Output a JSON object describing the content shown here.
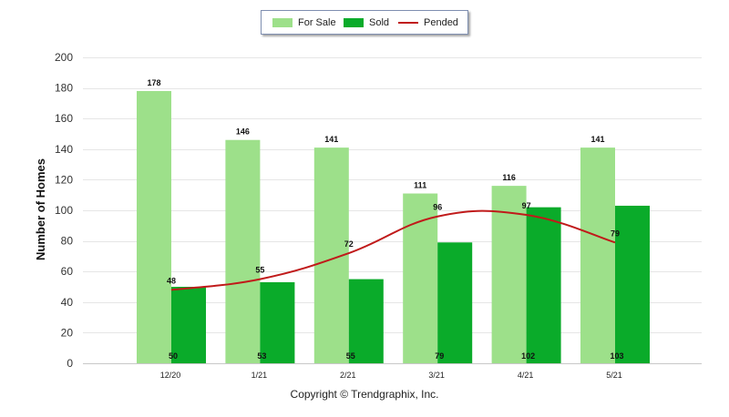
{
  "chart_data": {
    "type": "bar",
    "categories": [
      "12/20",
      "1/21",
      "2/21",
      "3/21",
      "4/21",
      "5/21"
    ],
    "series": [
      {
        "name": "For Sale",
        "kind": "bar",
        "color": "#9de08a",
        "values": [
          178,
          146,
          141,
          111,
          116,
          141
        ]
      },
      {
        "name": "Sold",
        "kind": "bar",
        "color": "#0aab2a",
        "values": [
          50,
          53,
          55,
          79,
          102,
          103
        ]
      },
      {
        "name": "Pended",
        "kind": "line",
        "color": "#c01a1a",
        "values": [
          48,
          55,
          72,
          96,
          97,
          79
        ]
      }
    ],
    "ylabel": "Number of Homes",
    "xlabel": "",
    "ylim": [
      0,
      200
    ],
    "yticks": [
      0,
      20,
      40,
      60,
      80,
      100,
      120,
      140,
      160,
      180,
      200
    ],
    "grid": true,
    "legend": "top-center"
  },
  "copyright": "Copyright © Trendgraphix, Inc."
}
